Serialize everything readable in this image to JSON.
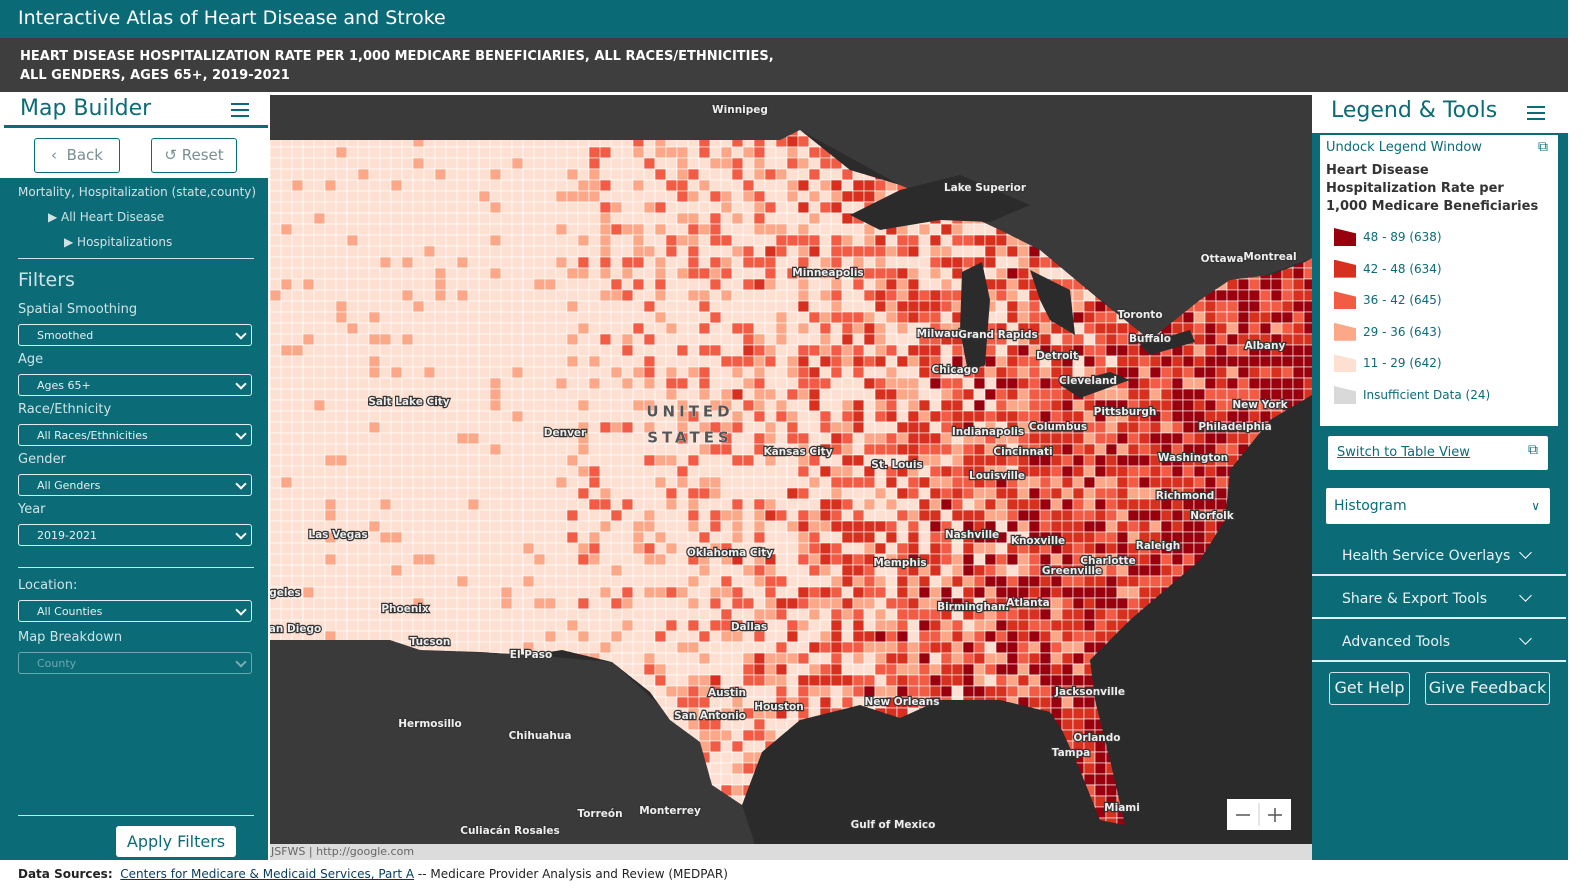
{
  "header": {
    "title": "Interactive Atlas of Heart Disease and Stroke"
  },
  "subtitle": "HEART DISEASE HOSPITALIZATION RATE PER 1,000 MEDICARE BENEFICIARIES, ALL RACES/ETHNICITIES, ALL GENDERS, AGES 65+, 2019-2021",
  "map_builder": {
    "title": "Map Builder",
    "back": "Back",
    "reset": "Reset",
    "breadcrumb": [
      "Mortality, Hospitalization (state,county)",
      "All Heart Disease",
      "Hospitalizations"
    ],
    "filters_title": "Filters",
    "filters": [
      {
        "label": "Spatial Smoothing",
        "value": "Smoothed"
      },
      {
        "label": "Age",
        "value": "Ages 65+"
      },
      {
        "label": "Race/Ethnicity",
        "value": "All Races/Ethnicities"
      },
      {
        "label": "Gender",
        "value": "All Genders"
      },
      {
        "label": "Year",
        "value": "2019-2021"
      }
    ],
    "location": [
      {
        "label": "Location:",
        "value": "All Counties"
      },
      {
        "label": "Map Breakdown",
        "value": "County"
      }
    ],
    "apply": "Apply Filters"
  },
  "map": {
    "labels": [
      "Winnipeg",
      "Lake Superior",
      "Minneapolis",
      "Ottawa",
      "Montreal",
      "Toronto",
      "Buffalo",
      "Albany",
      "Milwaukee",
      "Grand Rapids",
      "Detroit",
      "Chicago",
      "Cleveland",
      "Salt Lake City",
      "UNITED",
      "STATES",
      "Denver",
      "Pittsburgh",
      "New York",
      "Philadelphia",
      "Indianapolis",
      "Columbus",
      "Kansas City",
      "Cincinnati",
      "St. Louis",
      "Washington",
      "Louisville",
      "Richmond",
      "Norfolk",
      "Las Vegas",
      "Nashville",
      "Knoxville",
      "Raleigh",
      "Oklahoma City",
      "Charlotte",
      "Memphis",
      "Greenville",
      "geles",
      "Phoenix",
      "Birmingham",
      "Atlanta",
      "an Diego",
      "Dallas",
      "Tucson",
      "El Paso",
      "Austin",
      "Jacksonville",
      "New Orleans",
      "Houston",
      "San Antonio",
      "Hermosillo",
      "Chihuahua",
      "Orlando",
      "Tampa",
      "Miami",
      "Monterrey",
      "Torreón",
      "Culiacán Rosales",
      "Gulf of Mexico"
    ],
    "attribution": "JSFWS | http://google.com"
  },
  "legend": {
    "title": "Legend & Tools",
    "undock": "Undock Legend Window",
    "heading": "Heart Disease Hospitalization Rate per 1,000 Medicare Beneficiaries",
    "items": [
      {
        "label": "48 - 89 (638)",
        "color": "#99000d"
      },
      {
        "label": "42 - 48 (634)",
        "color": "#d7301f"
      },
      {
        "label": "36 - 42 (645)",
        "color": "#f25c45"
      },
      {
        "label": "29 - 36 (643)",
        "color": "#fca888"
      },
      {
        "label": "11 - 29 (642)",
        "color": "#fee0d2"
      },
      {
        "label": "Insufficient Data (24)",
        "color": "#d9d9d9"
      }
    ],
    "table_view": "Switch to Table View",
    "dropdown": "Histogram",
    "sections": [
      "Health Service Overlays",
      "Share & Export Tools",
      "Advanced Tools"
    ],
    "buttons": [
      "Get Help",
      "Give Feedback"
    ]
  },
  "footer": {
    "label": "Data Sources:",
    "link": "Centers for Medicare & Medicaid Services, Part A",
    "rest": "-- Medicare Provider Analysis and Review (MEDPAR)"
  }
}
